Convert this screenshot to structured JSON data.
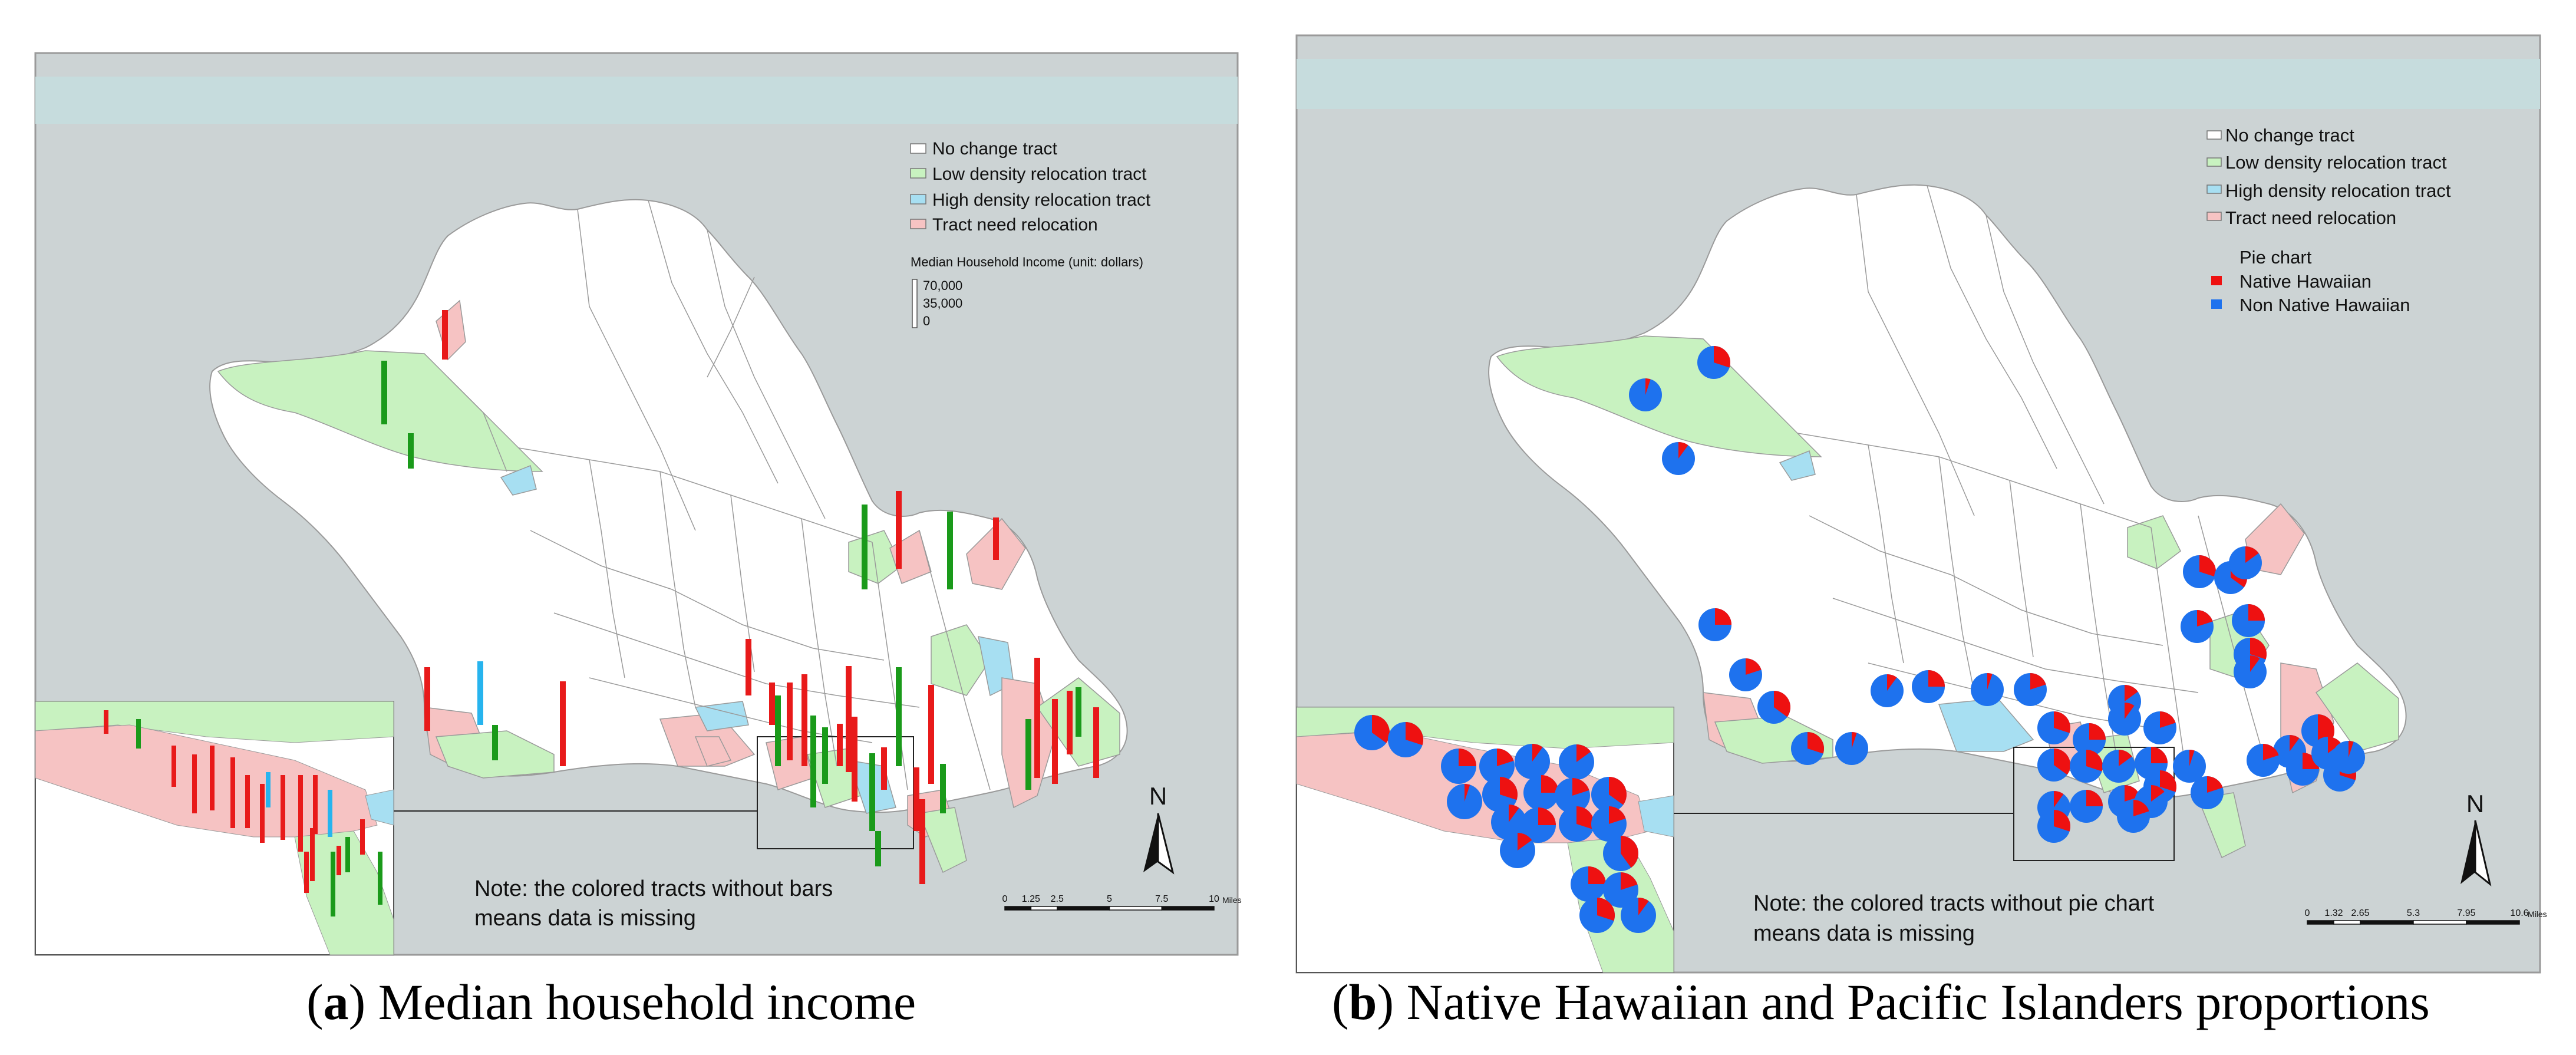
{
  "legend": {
    "no_change": "No change tract",
    "low_density": "Low density relocation tract",
    "high_density": "High density relocation tract",
    "need_relocation": "Tract need relocation"
  },
  "colors": {
    "sea": "#ccd3d4",
    "shore_band": "#c6dcdd",
    "land": "#ffffff",
    "tract_line": "#9a9a9a",
    "low_density": "#c8f2c0",
    "high_density": "#a7dff2",
    "need_relocation": "#f6c3c3",
    "bar_green": "#1a9a1a",
    "bar_red": "#e81a1a",
    "bar_blue": "#27b4ee",
    "pie_native": "#ee1111",
    "pie_non_native": "#1e72ee"
  },
  "panel_a": {
    "caption_letter": "a",
    "caption_text": "Median household income",
    "income_title": "Median Household Income (unit: dollars)",
    "income_scale": [
      "70,000",
      "35,000",
      "0"
    ],
    "note_line1": "Note: the colored tracts without bars",
    "note_line2": "means data is missing",
    "scale_ticks": [
      "0",
      "1.25",
      "2.5",
      "5",
      "7.5",
      "10"
    ],
    "scale_unit": "Miles",
    "north": "N",
    "bars": [
      {
        "c": "g",
        "v": 0.45
      },
      {
        "c": "r",
        "v": 0.35
      },
      {
        "c": "g",
        "v": 0.25
      },
      {
        "c": "g",
        "v": 0.6
      },
      {
        "c": "r",
        "v": 0.55
      },
      {
        "c": "g",
        "v": 0.55
      },
      {
        "c": "r",
        "v": 0.3
      },
      {
        "c": "r",
        "v": 0.45
      },
      {
        "c": "b",
        "v": 0.45
      },
      {
        "c": "g",
        "v": 0.25
      },
      {
        "c": "r",
        "v": 0.6
      },
      {
        "c": "r",
        "v": 0.4
      },
      {
        "c": "r",
        "v": 0.3
      },
      {
        "c": "r",
        "v": 0.55
      },
      {
        "c": "r",
        "v": 0.65
      },
      {
        "c": "r",
        "v": 0.75
      },
      {
        "c": "g",
        "v": 0.7
      },
      {
        "c": "r",
        "v": 0.6
      },
      {
        "c": "g",
        "v": 0.65
      },
      {
        "c": "r",
        "v": 0.3
      },
      {
        "c": "g",
        "v": 0.55
      },
      {
        "c": "r",
        "v": 0.45
      },
      {
        "c": "g",
        "v": 0.25
      },
      {
        "c": "r",
        "v": 0.6
      },
      {
        "c": "g",
        "v": 0.35
      },
      {
        "c": "r",
        "v": 0.7
      },
      {
        "c": "r",
        "v": 0.85
      },
      {
        "c": "g",
        "v": 0.5
      },
      {
        "c": "r",
        "v": 0.6
      },
      {
        "c": "r",
        "v": 0.45
      },
      {
        "c": "g",
        "v": 0.35
      },
      {
        "c": "r",
        "v": 0.5
      },
      {
        "c": "g",
        "v": 0.4
      },
      {
        "c": "r",
        "v": 0.3
      },
      {
        "c": "g",
        "v": 0.5
      }
    ],
    "inset_bars": [
      {
        "c": "r",
        "v": 0.2
      },
      {
        "c": "g",
        "v": 0.25
      },
      {
        "c": "r",
        "v": 0.35
      },
      {
        "c": "r",
        "v": 0.5
      },
      {
        "c": "r",
        "v": 0.55
      },
      {
        "c": "r",
        "v": 0.6
      },
      {
        "c": "r",
        "v": 0.45
      },
      {
        "c": "r",
        "v": 0.5
      },
      {
        "c": "b",
        "v": 0.3
      },
      {
        "c": "r",
        "v": 0.55
      },
      {
        "c": "r",
        "v": 0.65
      },
      {
        "c": "r",
        "v": 0.5
      },
      {
        "c": "b",
        "v": 0.4
      },
      {
        "c": "r",
        "v": 0.45
      },
      {
        "c": "r",
        "v": 0.35
      },
      {
        "c": "g",
        "v": 0.55
      },
      {
        "c": "r",
        "v": 0.25
      },
      {
        "c": "g",
        "v": 0.3
      },
      {
        "c": "r",
        "v": 0.3
      },
      {
        "c": "g",
        "v": 0.45
      }
    ]
  },
  "panel_b": {
    "caption_letter": "b",
    "caption_text": "Native Hawaiian and Pacific Islanders proportions",
    "pie_title": "Pie chart",
    "pie_native": "Native Hawaiian",
    "pie_non_native": "Non Native Hawaiian",
    "note_line1": "Note: the colored tracts without pie chart",
    "note_line2": "means data is missing",
    "scale_ticks": [
      "0",
      "1.32",
      "2.65",
      "5.3",
      "7.95",
      "10.6"
    ],
    "scale_unit": "Miles",
    "north": "N",
    "pies": [
      0.3,
      0.05,
      0.1,
      0.25,
      0.2,
      0.35,
      0.3,
      0.05,
      0.1,
      0.25,
      0.3,
      0.35,
      0.15,
      0.2,
      0.25,
      0.3,
      0.1,
      0.05,
      0.2,
      0.15,
      0.3,
      0.25,
      0.1,
      0.2,
      0.35,
      0.3,
      0.15,
      0.25,
      0.05,
      0.2,
      0.3,
      0.1,
      0.25,
      0.2,
      0.15,
      0.3,
      0.5,
      0.1,
      0.25,
      0.2,
      0.15,
      0.3,
      0.05,
      0.2
    ],
    "inset_pies": [
      0.35,
      0.3,
      0.25,
      0.2,
      0.1,
      0.15,
      0.05,
      0.3,
      0.25,
      0.2,
      0.35,
      0.1,
      0.25,
      0.3,
      0.2,
      0.15,
      0.4,
      0.25,
      0.2,
      0.3,
      0.1
    ]
  }
}
